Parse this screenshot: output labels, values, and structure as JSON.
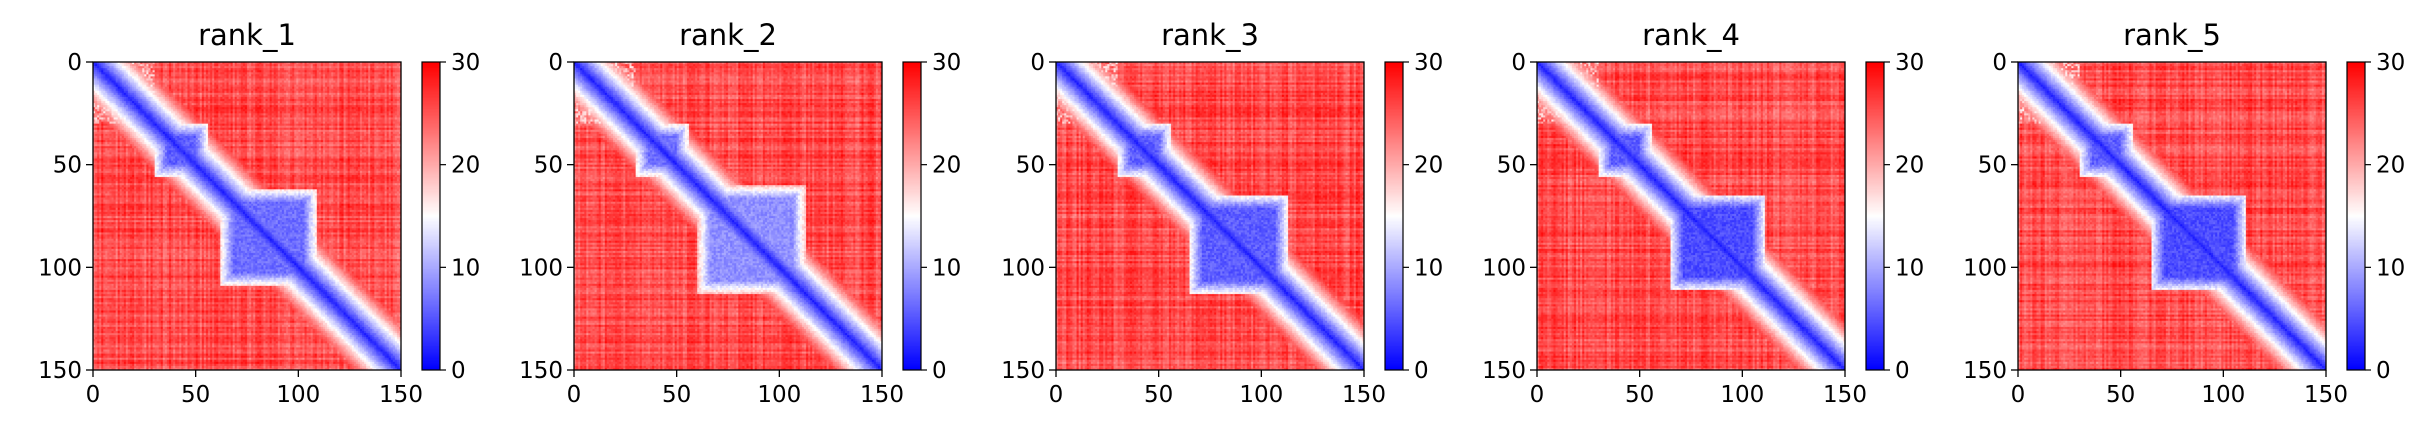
{
  "chart_data": [
    {
      "type": "heatmap",
      "title": "rank_1",
      "xlabel": "",
      "ylabel": "",
      "xlim": [
        0,
        150
      ],
      "ylim": [
        150,
        0
      ],
      "x_ticks": [
        "0",
        "50",
        "100",
        "150"
      ],
      "y_ticks": [
        "0",
        "50",
        "100",
        "150"
      ],
      "colorbar": {
        "range": [
          0,
          30
        ],
        "ticks": [
          "0",
          "10",
          "20",
          "30"
        ],
        "colormap": [
          "#0000ff",
          "#ffffff",
          "#ff0000"
        ]
      },
      "description": {
        "size": 150,
        "diagonal_band": "low values (0-5) along the main diagonal",
        "blocks": [
          {
            "start": 30,
            "end": 55,
            "value": 4
          },
          {
            "start": 62,
            "end": 108,
            "value": 5
          }
        ],
        "background": "high values (25-30)"
      }
    },
    {
      "type": "heatmap",
      "title": "rank_2",
      "xlabel": "",
      "ylabel": "",
      "xlim": [
        0,
        150
      ],
      "ylim": [
        150,
        0
      ],
      "x_ticks": [
        "0",
        "50",
        "100",
        "150"
      ],
      "y_ticks": [
        "0",
        "50",
        "100",
        "150"
      ],
      "colorbar": {
        "range": [
          0,
          30
        ],
        "ticks": [
          "0",
          "10",
          "20",
          "30"
        ],
        "colormap": [
          "#0000ff",
          "#ffffff",
          "#ff0000"
        ]
      },
      "description": {
        "size": 150,
        "diagonal_band": "low values (0-5) along the main diagonal",
        "blocks": [
          {
            "start": 30,
            "end": 55,
            "value": 5
          },
          {
            "start": 60,
            "end": 112,
            "value": 7
          }
        ],
        "background": "high values (22-30)"
      }
    },
    {
      "type": "heatmap",
      "title": "rank_3",
      "xlabel": "",
      "ylabel": "",
      "xlim": [
        0,
        150
      ],
      "ylim": [
        150,
        0
      ],
      "x_ticks": [
        "0",
        "50",
        "100",
        "150"
      ],
      "y_ticks": [
        "0",
        "50",
        "100",
        "150"
      ],
      "colorbar": {
        "range": [
          0,
          30
        ],
        "ticks": [
          "0",
          "10",
          "20",
          "30"
        ],
        "colormap": [
          "#0000ff",
          "#ffffff",
          "#ff0000"
        ]
      },
      "description": {
        "size": 150,
        "diagonal_band": "low values (0-5) along the main diagonal",
        "blocks": [
          {
            "start": 30,
            "end": 55,
            "value": 4
          },
          {
            "start": 65,
            "end": 112,
            "value": 4
          }
        ],
        "background": "high values (25-30)"
      }
    },
    {
      "type": "heatmap",
      "title": "rank_4",
      "xlabel": "",
      "ylabel": "",
      "xlim": [
        0,
        150
      ],
      "ylim": [
        150,
        0
      ],
      "x_ticks": [
        "0",
        "50",
        "100",
        "150"
      ],
      "y_ticks": [
        "0",
        "50",
        "100",
        "150"
      ],
      "colorbar": {
        "range": [
          0,
          30
        ],
        "ticks": [
          "0",
          "10",
          "20",
          "30"
        ],
        "colormap": [
          "#0000ff",
          "#ffffff",
          "#ff0000"
        ]
      },
      "description": {
        "size": 150,
        "diagonal_band": "low values (0-5) along the main diagonal",
        "blocks": [
          {
            "start": 30,
            "end": 55,
            "value": 4
          },
          {
            "start": 65,
            "end": 110,
            "value": 3
          }
        ],
        "background": "high values (26-30)"
      }
    },
    {
      "type": "heatmap",
      "title": "rank_5",
      "xlabel": "",
      "ylabel": "",
      "xlim": [
        0,
        150
      ],
      "ylim": [
        150,
        0
      ],
      "x_ticks": [
        "0",
        "50",
        "100",
        "150"
      ],
      "y_ticks": [
        "0",
        "50",
        "100",
        "150"
      ],
      "colorbar": {
        "range": [
          0,
          30
        ],
        "ticks": [
          "0",
          "10",
          "20",
          "30"
        ],
        "colormap": [
          "#0000ff",
          "#ffffff",
          "#ff0000"
        ]
      },
      "description": {
        "size": 150,
        "diagonal_band": "low values (0-5) along the main diagonal",
        "blocks": [
          {
            "start": 30,
            "end": 55,
            "value": 4
          },
          {
            "start": 65,
            "end": 110,
            "value": 3
          }
        ],
        "background": "high values (26-30)"
      }
    }
  ]
}
